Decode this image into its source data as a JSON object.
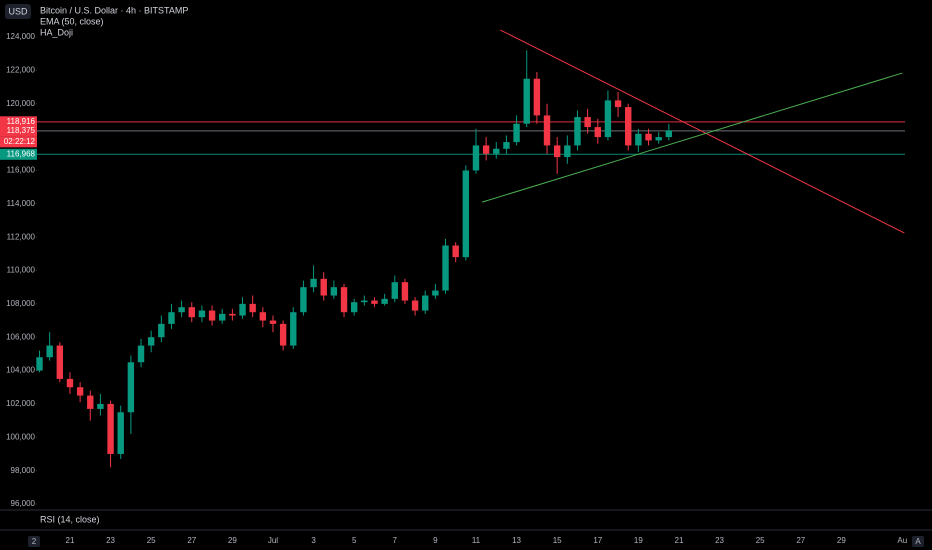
{
  "chart_data": {
    "type": "candlestick",
    "title": "Bitcoin / U.S. Dollar · 4h · BITSTAMP",
    "indicators": [
      "EMA (50, close)",
      "HA_Doji"
    ],
    "currency_button": "USD",
    "lower_pane": "RSI (14, close)",
    "toolbar": {
      "left": "2",
      "right": "A"
    },
    "up_color": "#089981",
    "down_color": "#f23645",
    "grid": false,
    "categories": [
      null,
      null,
      null,
      null,
      "21",
      null,
      null,
      null,
      "23",
      null,
      null,
      null,
      "25",
      null,
      null,
      null,
      "27",
      null,
      null,
      null,
      "29",
      null,
      null,
      null,
      "Jul",
      null,
      null,
      null,
      "3",
      null,
      null,
      null,
      "5",
      null,
      null,
      null,
      "7",
      null,
      null,
      null,
      "9",
      null,
      null,
      null,
      "11",
      null,
      null,
      null,
      "13",
      null,
      null,
      null,
      "15",
      null,
      null,
      null,
      "17",
      null,
      null,
      null,
      "19",
      null,
      null,
      null,
      "21",
      null,
      null,
      null,
      "23",
      null,
      null,
      null,
      "25",
      null,
      null,
      null,
      "27",
      null,
      null,
      null,
      "29",
      null,
      null,
      null,
      null,
      null,
      "Au"
    ],
    "open": [
      null,
      104000,
      104800,
      105500,
      103500,
      103000,
      102500,
      101700,
      102000,
      99000,
      101500,
      104500,
      105500,
      106000,
      106800,
      107500,
      107800,
      107200,
      107600,
      107000,
      107400,
      107300,
      108000,
      107500,
      107000,
      106800,
      105500,
      107500,
      109000,
      109500,
      108500,
      109000,
      107500,
      108100,
      108200,
      108000,
      108300,
      109300,
      108200,
      107600,
      108500,
      108800,
      111500,
      110800,
      116000,
      117500,
      117000,
      117300,
      117700,
      118800,
      121500,
      119300,
      117500,
      116800,
      117500,
      119200,
      118600,
      118000,
      120200,
      119800,
      117500,
      118200,
      117800,
      118000,
      null,
      null,
      null,
      null,
      null,
      null,
      null,
      null,
      null,
      null,
      null,
      null,
      null,
      null,
      null,
      null,
      null,
      null,
      null,
      null,
      null,
      null,
      null
    ],
    "high": [
      null,
      105200,
      106300,
      105700,
      103900,
      103300,
      102800,
      102600,
      102200,
      101900,
      104900,
      105900,
      106400,
      107300,
      108000,
      108200,
      108100,
      107900,
      107900,
      107700,
      107700,
      108400,
      108500,
      107800,
      107300,
      107000,
      107800,
      109400,
      110300,
      109900,
      109400,
      109200,
      108300,
      108500,
      108400,
      108600,
      109700,
      109500,
      108400,
      108800,
      109200,
      111900,
      111700,
      116300,
      118500,
      118000,
      117700,
      118100,
      119300,
      123200,
      121900,
      120000,
      118000,
      118100,
      119600,
      119700,
      119100,
      120800,
      120700,
      120000,
      118500,
      118500,
      118300,
      118800,
      null,
      null,
      null,
      null,
      null,
      null,
      null,
      null,
      null,
      null,
      null,
      null,
      null,
      null,
      null,
      null,
      null,
      null,
      null,
      null,
      null,
      null,
      null
    ],
    "low": [
      null,
      103900,
      104600,
      103300,
      102600,
      102100,
      101000,
      101300,
      98200,
      98700,
      100200,
      104200,
      105100,
      105700,
      106500,
      107200,
      106900,
      106900,
      106700,
      106800,
      107000,
      107100,
      107200,
      106600,
      106300,
      105200,
      105300,
      107300,
      108700,
      108200,
      108300,
      107200,
      107300,
      107900,
      107800,
      107900,
      108100,
      108000,
      107300,
      107400,
      108300,
      108600,
      110500,
      110600,
      115800,
      116600,
      116700,
      117000,
      117500,
      118600,
      118800,
      117000,
      115800,
      116400,
      117200,
      118200,
      117600,
      117800,
      119200,
      117200,
      117100,
      117500,
      117600,
      117800,
      null,
      null,
      null,
      null,
      null,
      null,
      null,
      null,
      null,
      null,
      null,
      null,
      null,
      null,
      null,
      null,
      null,
      null,
      null,
      null,
      null,
      null,
      null
    ],
    "close": [
      null,
      104800,
      105500,
      103500,
      103000,
      102500,
      101700,
      102000,
      99000,
      101500,
      104500,
      105500,
      106000,
      106800,
      107500,
      107800,
      107200,
      107600,
      107000,
      107400,
      107300,
      108000,
      107500,
      107000,
      106800,
      105500,
      107500,
      109000,
      109500,
      108500,
      109000,
      107500,
      108100,
      108200,
      108000,
      108300,
      109300,
      108200,
      107600,
      108500,
      108800,
      111500,
      110800,
      116000,
      117500,
      117000,
      117300,
      117700,
      118800,
      121500,
      119300,
      117500,
      116800,
      117500,
      119200,
      118600,
      118000,
      120200,
      119800,
      117500,
      118200,
      117800,
      118000,
      118400,
      null,
      null,
      null,
      null,
      null,
      null,
      null,
      null,
      null,
      null,
      null,
      null,
      null,
      null,
      null,
      null,
      null,
      null,
      null,
      null,
      null,
      null,
      null
    ],
    "ylim": [
      95640,
      126220
    ],
    "yticks": [
      {
        "value": 96000,
        "label": "96,000"
      },
      {
        "value": 98000,
        "label": "98,000"
      },
      {
        "value": 100000,
        "label": "100,000"
      },
      {
        "value": 102000,
        "label": "102,000"
      },
      {
        "value": 104000,
        "label": "104,000"
      },
      {
        "value": 106000,
        "label": "106,000"
      },
      {
        "value": 108000,
        "label": "108,000"
      },
      {
        "value": 110000,
        "label": "110,000"
      },
      {
        "value": 112000,
        "label": "112,000"
      },
      {
        "value": 114000,
        "label": "114,000"
      },
      {
        "value": 116000,
        "label": "116,000"
      },
      {
        "value": 118000,
        "label": "118,000"
      },
      {
        "value": 120000,
        "label": "120,000"
      },
      {
        "value": 122000,
        "label": "122,000"
      },
      {
        "value": 124000,
        "label": "124,000"
      }
    ],
    "levels": [
      {
        "value": 118916,
        "label": "118,916",
        "color": "#f23645"
      },
      {
        "value": 118375,
        "label": "118,375",
        "color": "#787b86",
        "countdown": "02:22:12",
        "badge_color": "#f23645"
      },
      {
        "value": 116968,
        "label": "116,968",
        "color": "#089981"
      }
    ],
    "trend_lines": [
      {
        "color": "#f23645",
        "x": [
          46.4,
          86.2
        ],
        "y": [
          124420,
          112250
        ]
      },
      {
        "color": "#4caf50",
        "x": [
          44.6,
          86
        ],
        "y": [
          114100,
          121840
        ]
      }
    ]
  }
}
